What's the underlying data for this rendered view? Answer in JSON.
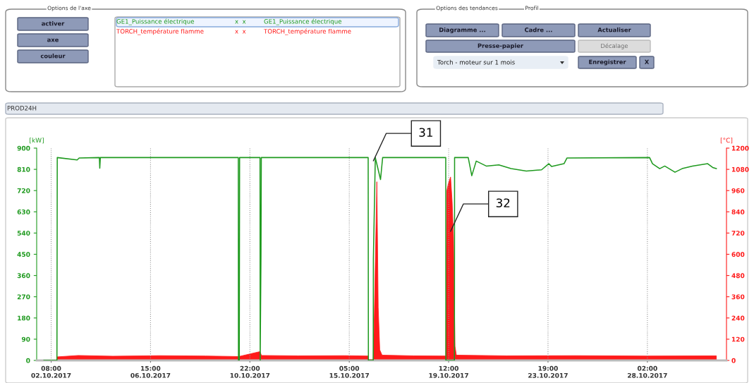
{
  "chart_data": {
    "type": "line",
    "title": "PROD24H",
    "ylabel": "[kW]",
    "y2label": "[°C]",
    "xlim": [
      "2017-10-01T17:00",
      "2017-10-31T12:00"
    ],
    "xticks": [
      {
        "value": "2017-10-02T08:00",
        "label": "08:00\n02.10.2017"
      },
      {
        "value": "2017-10-06T15:00",
        "label": "15:00\n06.10.2017"
      },
      {
        "value": "2017-10-10T22:00",
        "label": "22:00\n10.10.2017"
      },
      {
        "value": "2017-10-15T05:00",
        "label": "05:00\n15.10.2017"
      },
      {
        "value": "2017-10-19T12:00",
        "label": "12:00\n19.10.2017"
      },
      {
        "value": "2017-10-23T19:00",
        "label": "19:00\n23.10.2017"
      },
      {
        "value": "2017-10-28T02:00",
        "label": "02:00\n28.10.2017"
      }
    ],
    "ylim": [
      0,
      900
    ],
    "yticks": [
      0,
      90,
      180,
      270,
      360,
      450,
      540,
      630,
      720,
      810,
      900
    ],
    "y2lim": [
      0,
      1200
    ],
    "y2ticks": [
      0,
      120,
      240,
      360,
      480,
      600,
      720,
      840,
      960,
      1080,
      1200
    ],
    "grid": "x",
    "series": [
      {
        "name": "GE1_Puissance électrique",
        "color": "#1f9a1f",
        "x": [
          "2017-10-02T00:30",
          "2017-10-02T14:00",
          "2017-10-02T14:20",
          "2017-10-03T11:00",
          "2017-10-03T13:00",
          "2017-10-04T10:00",
          "2017-10-04T10:24",
          "2017-10-04T11:00",
          "2017-10-10T10:00",
          "2017-10-10T10:10",
          "2017-10-10T11:00",
          "2017-10-10T11:20",
          "2017-10-11T08:30",
          "2017-10-11T08:40",
          "2017-10-11T09:10",
          "2017-10-11T09:30",
          "2017-10-11T09:50",
          "2017-10-16T00:36",
          "2017-10-16T00:50",
          "2017-10-16T05:50",
          "2017-10-16T06:00",
          "2017-10-16T08:00",
          "2017-10-16T13:24",
          "2017-10-16T15:36",
          "2017-10-19T09:00",
          "2017-10-19T09:10",
          "2017-10-19T18:00",
          "2017-10-19T18:10",
          "2017-10-20T08:18",
          "2017-10-20T12:00",
          "2017-10-20T16:36",
          "2017-10-21T03:00",
          "2017-10-21T16:00",
          "2017-10-22T04:42",
          "2017-10-22T20:30",
          "2017-10-23T12:18",
          "2017-10-23T19:48",
          "2017-10-23T22:48",
          "2017-10-24T11:36",
          "2017-10-24T14:36",
          "2017-10-28T04:18",
          "2017-10-28T07:18",
          "2017-10-28T14:48",
          "2017-10-28T20:00",
          "2017-10-29T06:36",
          "2017-10-29T14:00",
          "2017-10-30T00:42",
          "2017-10-30T16:30",
          "2017-10-30T21:42",
          "2017-10-31T01:30"
        ],
        "values": [
          0,
          0,
          860,
          850,
          858,
          860,
          815,
          860,
          860,
          0,
          0,
          860,
          860,
          0,
          270,
          450,
          860,
          860,
          0,
          0,
          430,
          860,
          767,
          860,
          860,
          0,
          0,
          860,
          860,
          783,
          845,
          824,
          829,
          813,
          803,
          808,
          834,
          822,
          834,
          858,
          860,
          834,
          813,
          824,
          798,
          813,
          824,
          834,
          818,
          813
        ]
      },
      {
        "name": "TORCH_température flamme",
        "color": "#ff1a1a",
        "type": "area",
        "axis": "y2",
        "x": [
          "2017-10-02T14:00",
          "2017-10-03T12:00",
          "2017-10-05T00:00",
          "2017-10-07T00:00",
          "2017-10-09T00:00",
          "2017-10-10T10:30",
          "2017-10-11T08:30",
          "2017-10-11T10:00",
          "2017-10-13T00:00",
          "2017-10-15T00:00",
          "2017-10-16T00:36",
          "2017-10-16T01:00",
          "2017-10-16T05:50",
          "2017-10-16T07:00",
          "2017-10-16T09:36",
          "2017-10-16T11:00",
          "2017-10-16T12:36",
          "2017-10-16T15:00",
          "2017-10-18T00:00",
          "2017-10-19T09:00",
          "2017-10-19T10:12",
          "2017-10-19T11:42",
          "2017-10-19T14:00",
          "2017-10-19T15:36",
          "2017-10-19T17:00",
          "2017-10-19T18:36",
          "2017-10-19T20:00",
          "2017-10-22T00:00",
          "2017-10-25T00:00",
          "2017-10-28T00:00",
          "2017-10-31T01:30"
        ],
        "values": [
          20,
          28,
          24,
          27,
          25,
          22,
          50,
          28,
          26,
          27,
          25,
          5,
          5,
          267,
          1010,
          300,
          60,
          30,
          26,
          25,
          960,
          1000,
          1037,
          900,
          700,
          80,
          30,
          26,
          27,
          25,
          26
        ]
      }
    ],
    "annotations": [
      {
        "text": "31",
        "x": "2017-10-16T06:00",
        "y": 846
      },
      {
        "text": "32",
        "x": "2017-10-19T14:00",
        "y": 547
      },
      "Options de l'axe",
      "activer",
      "axe",
      "couleur",
      "x  x",
      "x  x",
      "Options des tendances",
      "Profil",
      "Diagramme ...",
      "Cadre ...",
      "Actualiser",
      "Presse-papier",
      "Décalage",
      "Torch - moteur sur 1 mois",
      "Enregistrer",
      "X"
    ]
  }
}
